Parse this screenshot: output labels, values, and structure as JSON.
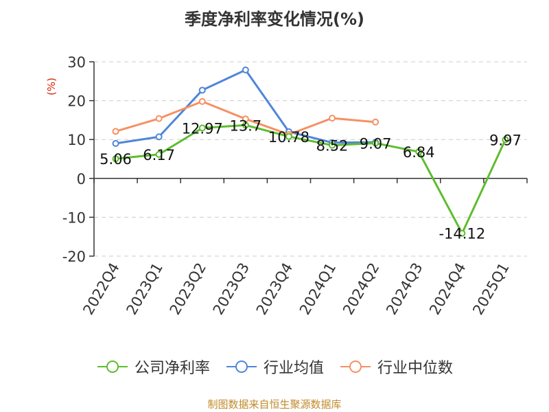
{
  "title": "季度净利率变化情况(%)",
  "footer": "制图数据来自恒生聚源数据库",
  "colors": {
    "company": "#5dbd2e",
    "industry_avg": "#4f86d9",
    "industry_median": "#f59165",
    "unit_label": "#d81e06",
    "axis": "#333333",
    "grid": "#cccccc"
  },
  "chart_data": {
    "type": "line",
    "title": "季度净利率变化情况(%)",
    "ylabel": "(%)",
    "ylim": [
      -20,
      30
    ],
    "yticks": [
      30,
      20,
      10,
      0,
      -10,
      -20
    ],
    "grid": true,
    "legend_position": "bottom",
    "categories": [
      "2022Q4",
      "2023Q1",
      "2023Q2",
      "2023Q3",
      "2023Q4",
      "2024Q1",
      "2024Q2",
      "2024Q3",
      "2024Q4",
      "2025Q1"
    ],
    "series": [
      {
        "name": "公司净利率",
        "color": "#5dbd2e",
        "values": [
          5.06,
          6.17,
          12.97,
          13.7,
          10.78,
          8.52,
          9.07,
          6.84,
          -14.12,
          9.97
        ],
        "labels": [
          "5.06",
          "6.17",
          "12.97",
          "13.7",
          "10.78",
          "8.52",
          "9.07",
          "6.84",
          "-14.12",
          "9.97"
        ]
      },
      {
        "name": "行业均值",
        "color": "#4f86d9",
        "values": [
          9.0,
          10.7,
          22.7,
          27.9,
          12.0,
          9.2,
          9.3,
          null,
          null,
          null
        ]
      },
      {
        "name": "行业中位数",
        "color": "#f59165",
        "values": [
          12.1,
          15.4,
          19.8,
          15.3,
          11.3,
          15.5,
          14.5,
          null,
          null,
          null
        ]
      }
    ]
  }
}
